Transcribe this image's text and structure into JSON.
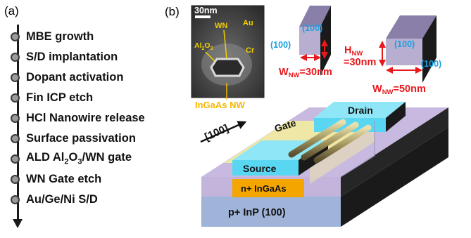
{
  "panel_a": {
    "label": "(a)",
    "steps": [
      {
        "pre": "MBE growth"
      },
      {
        "pre": "S/D implantation"
      },
      {
        "pre": "Dopant activation"
      },
      {
        "pre": "Fin ICP etch"
      },
      {
        "pre": "HCl Nanowire release"
      },
      {
        "pre": "Surface passivation"
      },
      {
        "pre": "ALD Al",
        "sub": "2",
        "mid": "O",
        "sub2": "3",
        "post": "/WN gate"
      },
      {
        "pre": "WN Gate etch"
      },
      {
        "pre": "Au/Ge/Ni S/D"
      }
    ]
  },
  "panel_b": {
    "label": "(b)",
    "tem": {
      "scale": "30nm",
      "wn": "WN",
      "au": "Au",
      "cr": "Cr",
      "al2o3": "Al",
      "al2o3_sub1": "2",
      "al2o3_o": "O",
      "al2o3_sub2": "3",
      "nw_label": "InGaAs NW"
    },
    "device": {
      "direction": "[100]",
      "gate": "Gate",
      "drain": "Drain",
      "source": "Source",
      "channel": "n+ InGaAs",
      "substrate": "p+ InP (100)"
    },
    "nanowires": {
      "left_top_face": "(100)",
      "left_side_face": "(100)",
      "right_top_face": "(100)",
      "right_side_face": "(100)",
      "h_label": "H",
      "h_sub": "NW",
      "h_value": "=30nm",
      "w1_label": "W",
      "w1_sub": "NW",
      "w1_value": "=30nm",
      "w2_label": "W",
      "w2_sub": "NW",
      "w2_value": "=50nm"
    },
    "colors": {
      "annotation_red": "#e8191c",
      "face_blue": "#1ea0e0",
      "label_yellow": "#f5b800",
      "tem_yellow": "#f0d000"
    }
  }
}
